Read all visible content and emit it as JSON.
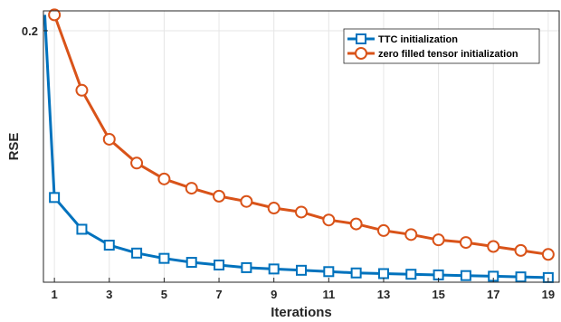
{
  "chart_data": {
    "type": "line",
    "xlabel": "Iterations",
    "ylabel": "RSE",
    "x": [
      1,
      2,
      3,
      4,
      5,
      6,
      7,
      8,
      9,
      10,
      11,
      12,
      13,
      14,
      15,
      16,
      17,
      18,
      19
    ],
    "xticks": [
      "1",
      "3",
      "5",
      "7",
      "9",
      "11",
      "13",
      "15",
      "17",
      "19"
    ],
    "xtick_values": [
      1,
      3,
      5,
      7,
      9,
      11,
      13,
      15,
      17,
      19
    ],
    "yticks": [
      "0.2"
    ],
    "ytick_values": [
      0.2
    ],
    "xlim": [
      0.6,
      19.4
    ],
    "ylim": [
      0.01,
      0.215
    ],
    "grid": true,
    "legend_position": "top-right",
    "series": [
      {
        "name": "TTC initialization",
        "color": "#0072BD",
        "marker": "square",
        "x0": 0.65,
        "y0": 0.212,
        "values": [
          0.074,
          0.05,
          0.038,
          0.032,
          0.028,
          0.025,
          0.023,
          0.021,
          0.02,
          0.019,
          0.018,
          0.017,
          0.0165,
          0.016,
          0.0155,
          0.015,
          0.0145,
          0.014,
          0.0135
        ]
      },
      {
        "name": "zero filled tensor initialization",
        "color": "#D95319",
        "marker": "circle",
        "values": [
          0.212,
          0.155,
          0.118,
          0.1,
          0.088,
          0.081,
          0.075,
          0.071,
          0.066,
          0.063,
          0.057,
          0.054,
          0.049,
          0.046,
          0.042,
          0.04,
          0.037,
          0.034,
          0.031
        ]
      }
    ]
  }
}
